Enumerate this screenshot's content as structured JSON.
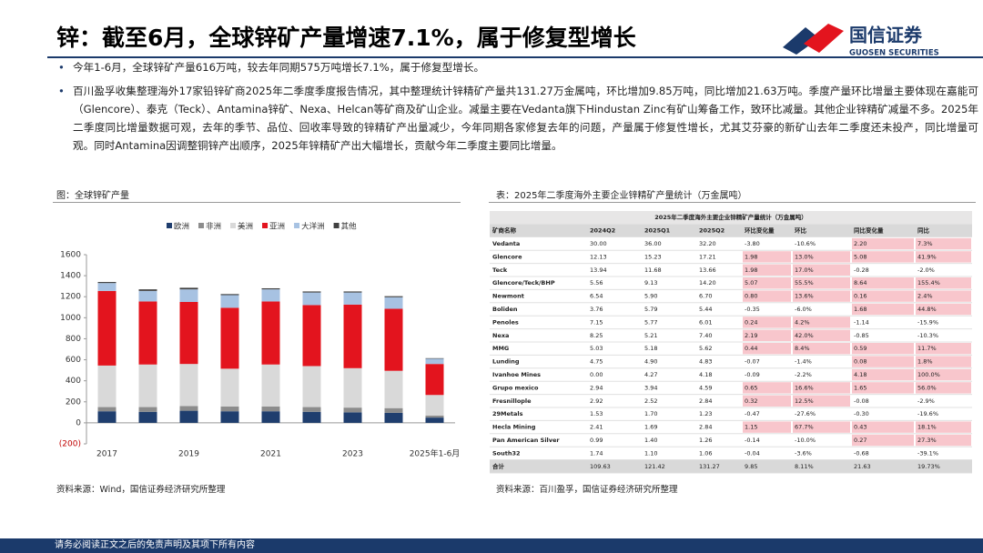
{
  "header": {
    "title": "锌：截至6月，全球锌矿产量增速7.1%，属于修复型增长",
    "logo_name": "国信证券",
    "logo_sub": "GUOSEN SECURITIES"
  },
  "bullets": [
    "今年1-6月，全球锌矿产量616万吨，较去年同期575万吨增长7.1%，属于修复型增长。",
    "百川盈孚收集整理海外17家铅锌矿商2025年二季度季度报告情况，其中整理统计锌精矿产量共131.27万金属吨，环比增加9.85万吨，同比增加21.63万吨。季度产量环比增量主要体现在嘉能可（Glencore）、泰克（Teck）、Antamina锌矿、Nexa、Helcan等矿商及矿山企业。减量主要在Vedanta旗下Hindustan Zinc有矿山筹备工作，致环比减量。其他企业锌精矿减量不多。2025年二季度同比增量数据可观，去年的季节、品位、回收率导致的锌精矿产出量减少，今年同期各家修复去年的问题，产量属于修复性增长，尤其艾芬豪的新矿山去年二季度还未投产，同比增量可观。同时Antamina因调整铜锌产出顺序，2025年锌精矿产出大幅增长，贡献今年二季度主要同比增量。"
  ],
  "chart_caption": "图：全球锌矿产量",
  "chart_data": {
    "type": "bar",
    "stacked": true,
    "legend": "top",
    "categories": [
      "2017",
      null,
      "2019",
      null,
      "2021",
      null,
      "2023",
      null,
      "2025年1-6月"
    ],
    "series": [
      {
        "name": "欧洲",
        "color": "#1f3e6e",
        "values": [
          110,
          105,
          115,
          110,
          110,
          105,
          100,
          95,
          50
        ]
      },
      {
        "name": "非洲",
        "color": "#8c8c8c",
        "values": [
          40,
          45,
          45,
          45,
          45,
          45,
          45,
          45,
          20
        ]
      },
      {
        "name": "美洲",
        "color": "#d9d9d9",
        "values": [
          395,
          405,
          400,
          360,
          400,
          390,
          375,
          355,
          195
        ]
      },
      {
        "name": "亚洲",
        "color": "#e3141e",
        "values": [
          710,
          600,
          590,
          580,
          600,
          580,
          605,
          590,
          295
        ]
      },
      {
        "name": "大洋洲",
        "color": "#a7c2e2",
        "values": [
          75,
          100,
          120,
          120,
          115,
          120,
          115,
          110,
          50
        ]
      },
      {
        "name": "其他",
        "color": "#404040",
        "values": [
          10,
          15,
          15,
          10,
          10,
          10,
          10,
          10,
          5
        ]
      }
    ],
    "ylim": [
      -200,
      1600
    ],
    "yticks": [
      {
        "value": -200,
        "label": "(200)"
      },
      0,
      200,
      400,
      600,
      800,
      1000,
      1200,
      1400,
      1600
    ]
  },
  "chart_source": "资料来源：Wind，国信证券经济研究所整理",
  "table": {
    "caption": "表：2025年二季度海外主要企业锌精矿产量统计（万金属吨）",
    "title": "2025年二季度海外主要企业锌精矿产量统计（万金属吨）",
    "columns": [
      "矿商名称",
      "2024Q2",
      "2025Q1",
      "2025Q2",
      "环比变化量",
      "环比",
      "同比变化量",
      "同比"
    ],
    "rows": [
      [
        "Vedanta",
        "30.00",
        "36.00",
        "32.20",
        "-3.80",
        "-10.6%",
        "2.20",
        "7.3%"
      ],
      [
        "Glencore",
        "12.13",
        "15.23",
        "17.21",
        "1.98",
        "13.0%",
        "5.08",
        "41.9%"
      ],
      [
        "Teck",
        "13.94",
        "11.68",
        "13.66",
        "1.98",
        "17.0%",
        "-0.28",
        "-2.0%"
      ],
      [
        "Glencore/Teck/BHP",
        "5.56",
        "9.13",
        "14.20",
        "5.07",
        "55.5%",
        "8.64",
        "155.4%"
      ],
      [
        "Newmont",
        "6.54",
        "5.90",
        "6.70",
        "0.80",
        "13.6%",
        "0.16",
        "2.4%"
      ],
      [
        "Boliden",
        "3.76",
        "5.79",
        "5.44",
        "-0.35",
        "-6.0%",
        "1.68",
        "44.8%"
      ],
      [
        "Penoles",
        "7.15",
        "5.77",
        "6.01",
        "0.24",
        "4.2%",
        "-1.14",
        "-15.9%"
      ],
      [
        "Nexa",
        "8.25",
        "5.21",
        "7.40",
        "2.19",
        "42.0%",
        "-0.85",
        "-10.3%"
      ],
      [
        "MMG",
        "5.03",
        "5.18",
        "5.62",
        "0.44",
        "8.4%",
        "0.59",
        "11.7%"
      ],
      [
        "Lunding",
        "4.75",
        "4.90",
        "4.83",
        "-0.07",
        "-1.4%",
        "0.08",
        "1.8%"
      ],
      [
        "Ivanhoe Mines",
        "0.00",
        "4.27",
        "4.18",
        "-0.09",
        "-2.2%",
        "4.18",
        "100.0%"
      ],
      [
        "Grupo mexico",
        "2.94",
        "3.94",
        "4.59",
        "0.65",
        "16.6%",
        "1.65",
        "56.0%"
      ],
      [
        "Fresnillople",
        "2.92",
        "2.52",
        "2.84",
        "0.32",
        "12.5%",
        "-0.08",
        "-2.9%"
      ],
      [
        "29Metals",
        "1.53",
        "1.70",
        "1.23",
        "-0.47",
        "-27.6%",
        "-0.30",
        "-19.6%"
      ],
      [
        "Hecla Mining",
        "2.41",
        "1.69",
        "2.84",
        "1.15",
        "67.7%",
        "0.43",
        "18.1%"
      ],
      [
        "Pan American Silver",
        "0.99",
        "1.40",
        "1.26",
        "-0.14",
        "-10.0%",
        "0.27",
        "27.3%"
      ],
      [
        "South32",
        "1.74",
        "1.10",
        "1.06",
        "-0.04",
        "-3.6%",
        "-0.68",
        "-39.1%"
      ],
      [
        "合计",
        "109.63",
        "121.42",
        "131.27",
        "9.85",
        "8.11%",
        "21.63",
        "19.73%"
      ]
    ]
  },
  "table_source": "资料来源：百川盈孚，国信证券经济研究所整理",
  "footer": "请务必阅读正文之后的免责声明及其项下所有内容"
}
